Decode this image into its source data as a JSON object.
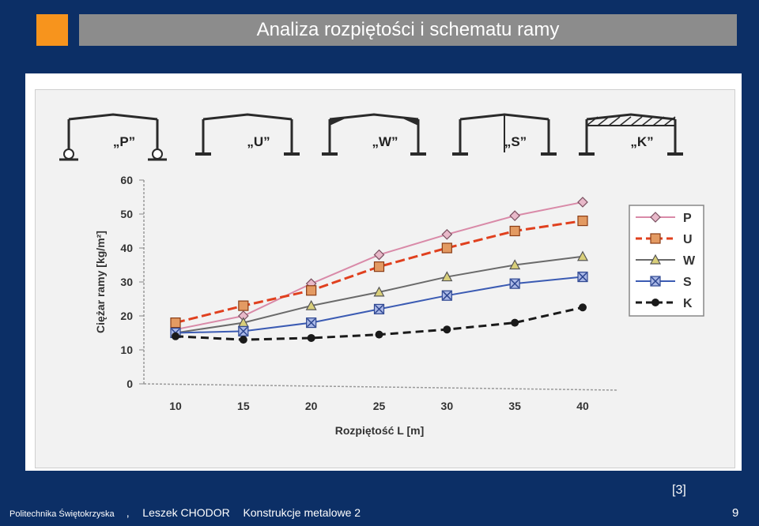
{
  "slide": {
    "title": "Analiza rozpiętości i schematu ramy",
    "reference": "[3]",
    "footer": {
      "institution": "Politechnika Świętokrzyska",
      "separator": ",",
      "author": "Leszek CHODOR",
      "course": "Konstrukcje metalowe 2"
    },
    "page_number": "9"
  },
  "frames": [
    {
      "label": "„P”",
      "kind": "P"
    },
    {
      "label": "„U”",
      "kind": "U"
    },
    {
      "label": "„W”",
      "kind": "W"
    },
    {
      "label": "„S”",
      "kind": "S"
    },
    {
      "label": "„K”",
      "kind": "K"
    }
  ],
  "colors": {
    "background": "#0c2f66",
    "accent": "#f7941d",
    "title_bar": "#8c8c8c",
    "P": "#d98aa8",
    "U": "#e0401e",
    "W": "#6a6a6a",
    "S": "#3b5bb3",
    "K": "#1a1a1a"
  },
  "chart_data": {
    "type": "line",
    "xlabel": "Rozpiętość L [m]",
    "ylabel": "Ciężar ramy [kg/m²]",
    "x": [
      10,
      15,
      20,
      25,
      30,
      35,
      40
    ],
    "ylim": [
      0,
      60
    ],
    "yticks": [
      0,
      10,
      20,
      30,
      40,
      50,
      60
    ],
    "grid": false,
    "legend": "right",
    "series": [
      {
        "name": "P",
        "marker": "diamond",
        "dash": "solid",
        "values": [
          16,
          20,
          29.5,
          38,
          44,
          49.5,
          53.5
        ]
      },
      {
        "name": "U",
        "marker": "square",
        "dash": "dashed",
        "values": [
          18,
          23,
          27.5,
          34.5,
          40,
          45,
          48
        ]
      },
      {
        "name": "W",
        "marker": "triangle",
        "dash": "solid",
        "values": [
          15,
          18,
          23,
          27,
          31.5,
          35,
          37.5
        ]
      },
      {
        "name": "S",
        "marker": "x-square",
        "dash": "solid",
        "values": [
          15,
          15.5,
          18,
          22,
          26,
          29.5,
          31.5
        ]
      },
      {
        "name": "K",
        "marker": "circle",
        "dash": "dashed",
        "values": [
          14,
          13,
          13.5,
          14.5,
          16,
          18,
          22.5
        ]
      }
    ]
  }
}
